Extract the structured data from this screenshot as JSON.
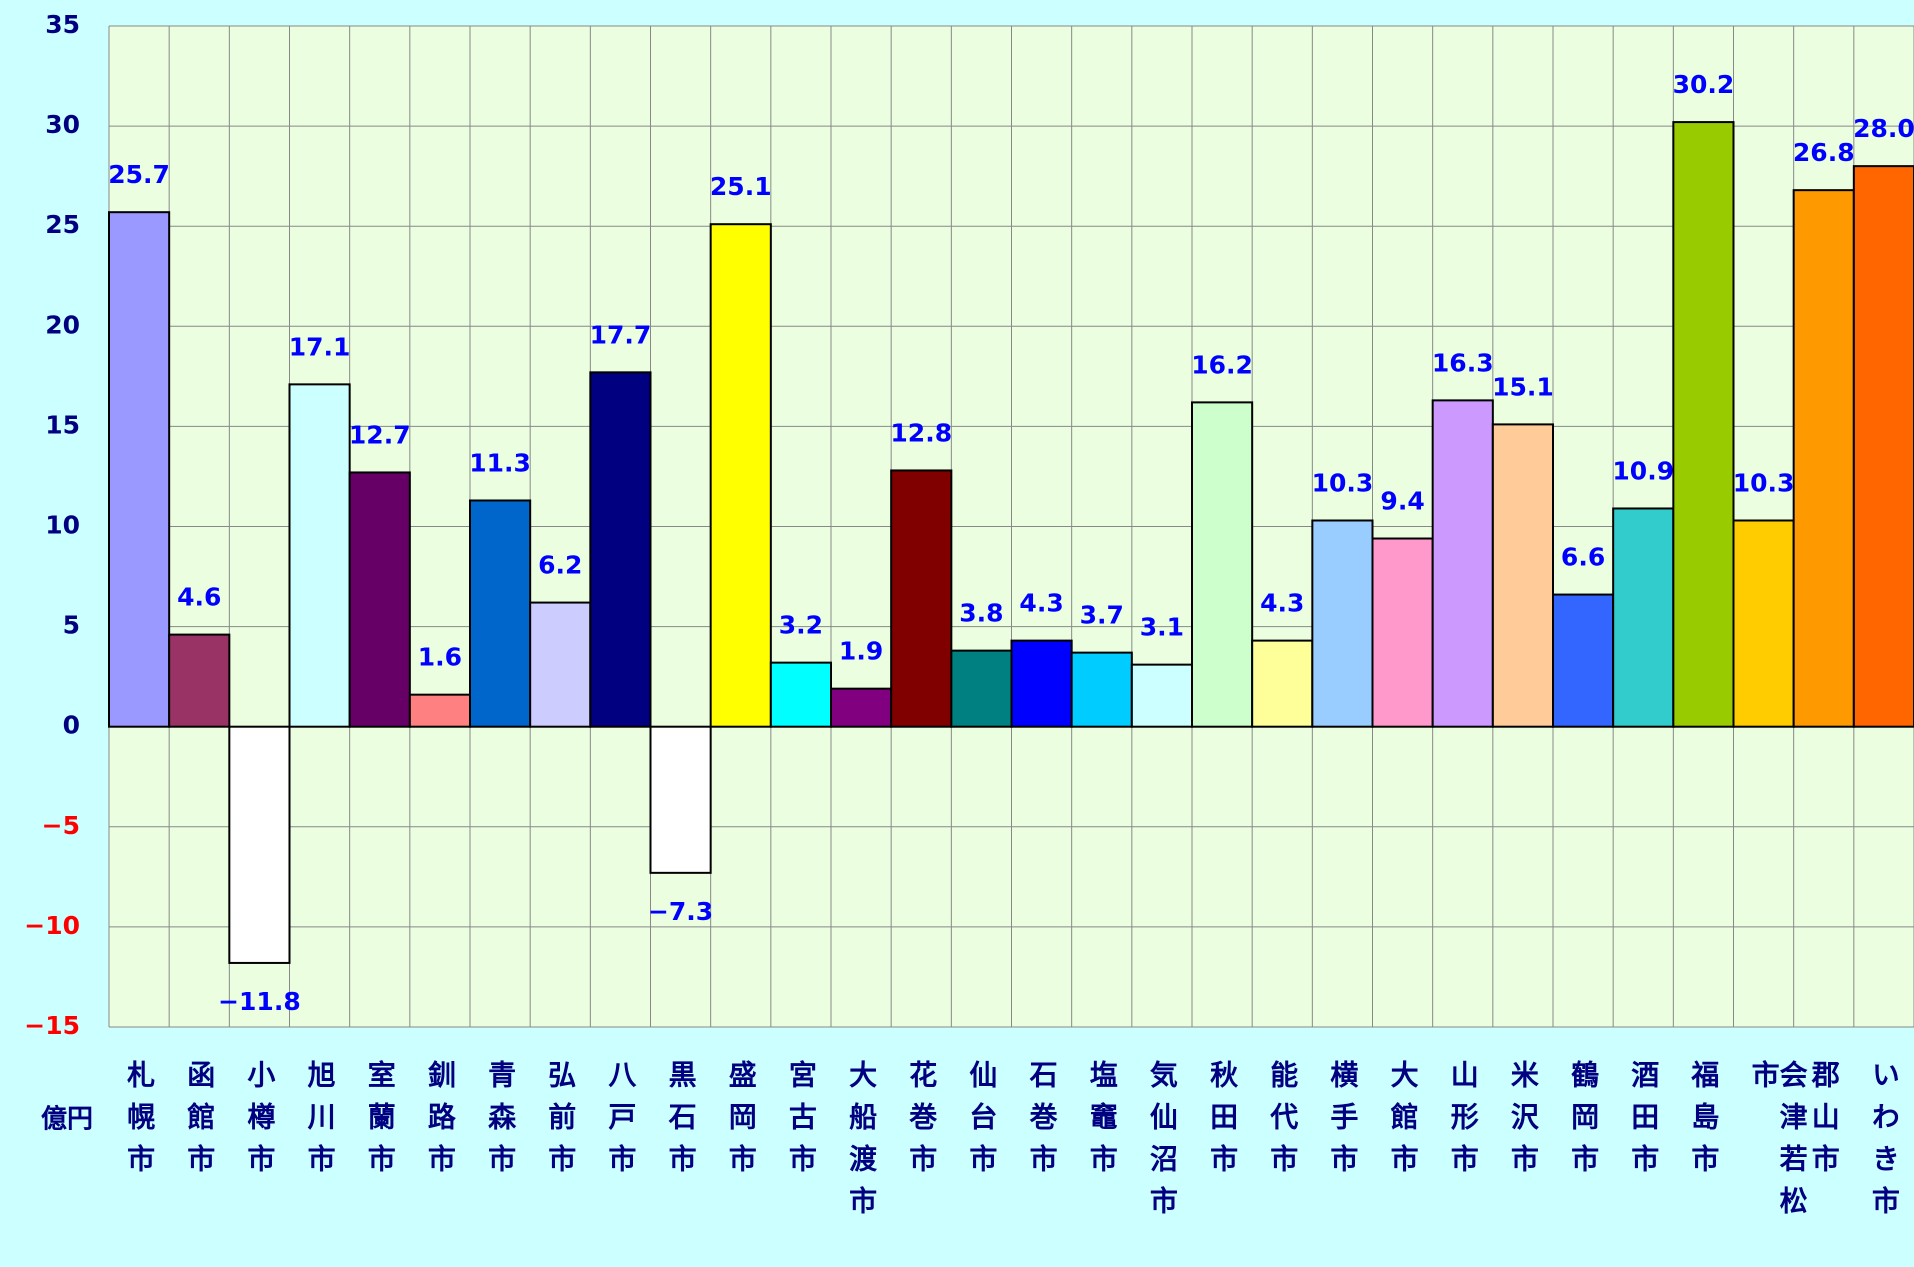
{
  "chart_data": {
    "type": "bar",
    "y_unit": "億円",
    "categories": [
      "札幌市",
      "函館市",
      "小樽市",
      "旭川市",
      "室蘭市",
      "釧路市",
      "青森市",
      "弘前市",
      "八戸市",
      "黒石市",
      "盛岡市",
      "宮古市",
      "大船渡市",
      "花巻市",
      "仙台市",
      "石巻市",
      "塩竈市",
      "気仙沼市",
      "秋田市",
      "能代市",
      "横手市",
      "大館市",
      "山形市",
      "米沢市",
      "鶴岡市",
      "酒田市",
      "福島市",
      "会津若松市",
      "郡山市",
      "いわき市"
    ],
    "values": [
      25.7,
      4.6,
      -11.8,
      17.1,
      12.7,
      1.6,
      11.3,
      6.2,
      17.7,
      -7.3,
      25.1,
      3.2,
      1.9,
      12.8,
      3.8,
      4.3,
      3.7,
      3.1,
      16.2,
      4.3,
      10.3,
      9.4,
      16.3,
      15.1,
      6.6,
      10.9,
      30.2,
      10.3,
      26.8,
      28.0
    ],
    "value_labels": [
      "25.7",
      "4.6",
      "−11.8",
      "17.1",
      "12.7",
      "1.6",
      "11.3",
      "6.2",
      "17.7",
      "−7.3",
      "25.1",
      "3.2",
      "1.9",
      "12.8",
      "3.8",
      "4.3",
      "3.7",
      "3.1",
      "16.2",
      "4.3",
      "10.3",
      "9.4",
      "16.3",
      "15.1",
      "6.6",
      "10.9",
      "30.2",
      "10.3",
      "26.8",
      "28.0"
    ],
    "colors": [
      "#9999ff",
      "#993366",
      "#ffffff",
      "#ccffff",
      "#660066",
      "#ff8080",
      "#0066cc",
      "#ccccff",
      "#000080",
      "#ffffff",
      "#ffff00",
      "#00ffff",
      "#800080",
      "#800000",
      "#008080",
      "#0000ff",
      "#00ccff",
      "#ccffff",
      "#ccffcc",
      "#ffff99",
      "#99ccff",
      "#ff99cc",
      "#cc99ff",
      "#ffcc99",
      "#3366ff",
      "#33cccc",
      "#99cc00",
      "#ffcc00",
      "#ff9900",
      "#ff6600"
    ],
    "ylim": [
      -15,
      35
    ],
    "yticks": [
      {
        "value": -15,
        "label": "−15"
      },
      {
        "value": -10,
        "label": "−10"
      },
      {
        "value": -5,
        "label": "−5"
      },
      0,
      5,
      10,
      15,
      20,
      25,
      30,
      35
    ],
    "grid": true
  }
}
